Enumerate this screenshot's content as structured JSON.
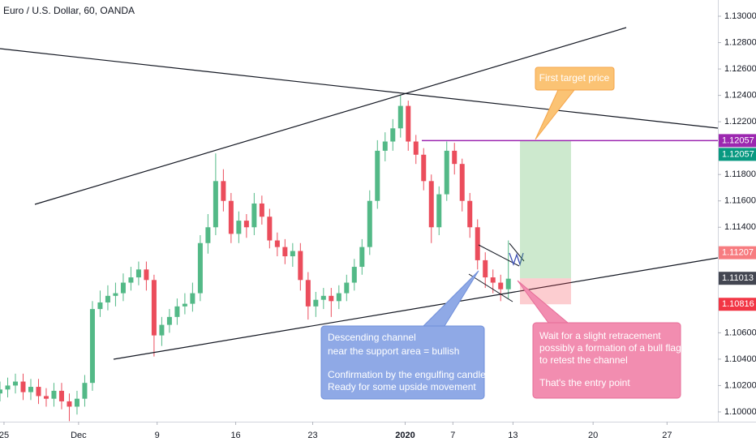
{
  "chart_data": {
    "type": "candlestick",
    "title": "Euro / U.S. Dollar, 60, OANDA",
    "x": [
      0,
      0.5,
      1,
      1.5,
      2,
      2.5,
      3,
      3.5,
      4,
      4.5,
      5,
      5.5,
      6,
      6.5,
      7,
      7.5,
      8,
      8.5,
      9,
      9.5,
      10,
      10.5,
      11,
      11.5,
      12,
      12.5,
      13,
      13.5,
      14,
      14.5,
      15,
      15.5,
      16,
      16.5,
      17,
      17.5,
      18,
      18.5,
      19,
      19.5,
      20,
      20.5,
      21,
      21.5,
      22,
      22.5,
      23,
      23.5,
      24,
      24.5,
      25,
      25.5,
      26,
      26.5,
      27,
      27.5,
      28,
      28.5,
      29,
      29.5,
      30,
      30.5,
      31,
      31.5,
      32,
      32.5,
      33
    ],
    "open": [
      1.1014,
      1.1017,
      1.102,
      1.1023,
      1.1015,
      1.1019,
      1.1012,
      1.101,
      1.1016,
      1.1008,
      1.1004,
      1.101,
      1.1022,
      1.1078,
      1.1083,
      1.1088,
      1.109,
      1.1098,
      1.1102,
      1.1108,
      1.11,
      1.1058,
      1.1066,
      1.1072,
      1.108,
      1.1082,
      1.109,
      1.1128,
      1.114,
      1.1175,
      1.116,
      1.1135,
      1.1145,
      1.114,
      1.1158,
      1.1148,
      1.113,
      1.1125,
      1.1118,
      1.1122,
      1.11,
      1.108,
      1.1085,
      1.1088,
      1.1084,
      1.109,
      1.1098,
      1.111,
      1.1125,
      1.116,
      1.1198,
      1.1205,
      1.1215,
      1.1232,
      1.1205,
      1.1195,
      1.1175,
      1.114,
      1.1165,
      1.1198,
      1.1188,
      1.116,
      1.114,
      1.1115,
      1.1102,
      1.1098,
      1.1093
    ],
    "high": [
      1.1023,
      1.1026,
      1.1029,
      1.1029,
      1.1025,
      1.1025,
      1.1018,
      1.1022,
      1.1022,
      1.1014,
      1.1016,
      1.1028,
      1.1084,
      1.1092,
      1.1096,
      1.1098,
      1.1105,
      1.111,
      1.1114,
      1.1114,
      1.1104,
      1.1072,
      1.1078,
      1.1086,
      1.109,
      1.1098,
      1.1134,
      1.115,
      1.1196,
      1.1184,
      1.1166,
      1.1152,
      1.115,
      1.1166,
      1.1164,
      1.1154,
      1.1136,
      1.1131,
      1.1128,
      1.1128,
      1.1106,
      1.1091,
      1.1094,
      1.1094,
      1.1096,
      1.1104,
      1.1116,
      1.1131,
      1.1168,
      1.1206,
      1.1212,
      1.1222,
      1.124,
      1.1236,
      1.121,
      1.12,
      1.118,
      1.1171,
      1.1205,
      1.1204,
      1.1192,
      1.1166,
      1.1146,
      1.1121,
      1.1108,
      1.1104,
      1.113
    ],
    "low": [
      1.1008,
      1.1011,
      1.1014,
      1.1009,
      1.1009,
      1.1006,
      1.1004,
      1.1004,
      1.1002,
      1.0993,
      1.0998,
      1.1004,
      1.1016,
      1.1072,
      1.1077,
      1.108,
      1.1084,
      1.1092,
      1.1096,
      1.1092,
      1.1042,
      1.105,
      1.106,
      1.1066,
      1.1074,
      1.1076,
      1.1084,
      1.112,
      1.1134,
      1.1152,
      1.1128,
      1.1128,
      1.1132,
      1.1134,
      1.1142,
      1.1124,
      1.1118,
      1.1112,
      1.111,
      1.1092,
      1.107,
      1.1072,
      1.1078,
      1.1072,
      1.1078,
      1.1084,
      1.1092,
      1.1104,
      1.1119,
      1.1154,
      1.119,
      1.1198,
      1.1208,
      1.1198,
      1.1188,
      1.1168,
      1.1128,
      1.1134,
      1.116,
      1.118,
      1.1152,
      1.1132,
      1.1108,
      1.1094,
      1.109,
      1.1084,
      1.1086
    ],
    "close": [
      1.1017,
      1.102,
      1.1023,
      1.1015,
      1.1019,
      1.1012,
      1.101,
      1.1016,
      1.1008,
      1.1004,
      1.101,
      1.1022,
      1.1078,
      1.1083,
      1.1088,
      1.109,
      1.1098,
      1.1102,
      1.1108,
      1.11,
      1.1058,
      1.1066,
      1.1072,
      1.108,
      1.1082,
      1.109,
      1.1128,
      1.114,
      1.1175,
      1.116,
      1.1135,
      1.1145,
      1.114,
      1.1158,
      1.1148,
      1.113,
      1.1125,
      1.1118,
      1.1122,
      1.11,
      1.108,
      1.1085,
      1.1088,
      1.1084,
      1.109,
      1.1098,
      1.111,
      1.1125,
      1.116,
      1.1198,
      1.1205,
      1.1215,
      1.1232,
      1.1205,
      1.1195,
      1.1175,
      1.114,
      1.1165,
      1.1198,
      1.1188,
      1.116,
      1.114,
      1.1115,
      1.1102,
      1.1098,
      1.1093,
      1.1101
    ],
    "up_color": "#53b987",
    "down_color": "#eb4d5c",
    "xlim": [
      0,
      46.6
    ],
    "xticks": [
      {
        "value": 0.26,
        "label": "25"
      },
      {
        "value": 5.1,
        "label": "Dec"
      },
      {
        "value": 10.2,
        "label": "9"
      },
      {
        "value": 15.3,
        "label": "16"
      },
      {
        "value": 20.3,
        "label": "23"
      },
      {
        "value": 26.3,
        "label": "2020"
      },
      {
        "value": 29.4,
        "label": "7"
      },
      {
        "value": 33.3,
        "label": "13"
      },
      {
        "value": 38.5,
        "label": "20"
      },
      {
        "value": 43.3,
        "label": "27"
      }
    ],
    "ylim": [
      1.09926,
      1.13123
    ],
    "yticks": [
      {
        "value": 1.13,
        "label": "1.13000"
      },
      {
        "value": 1.128,
        "label": "1.12800"
      },
      {
        "value": 1.126,
        "label": "1.12600"
      },
      {
        "value": 1.124,
        "label": "1.12400"
      },
      {
        "value": 1.122,
        "label": "1.12200"
      },
      {
        "value": 1.118,
        "label": "1.11800"
      },
      {
        "value": 1.116,
        "label": "1.11600"
      },
      {
        "value": 1.114,
        "label": "1.11400"
      },
      {
        "value": 1.106,
        "label": "1.10600"
      },
      {
        "value": 1.104,
        "label": "1.10400"
      },
      {
        "value": 1.102,
        "label": "1.10200"
      },
      {
        "value": 1.1,
        "label": "1.10000"
      }
    ],
    "grid": false,
    "levels": [
      {
        "value": 1.12057,
        "color": "#9c27b0"
      },
      {
        "value": 1.12057,
        "color": "#089981"
      },
      {
        "value": 1.11207,
        "color": "#f77c80"
      },
      {
        "value": 1.11013,
        "color": "#434651"
      },
      {
        "value": 1.10816,
        "color": "#f23645"
      }
    ],
    "annotations": {
      "target_note": "First target price",
      "channel_note": [
        "Descending channel",
        "near the support area = bullish",
        "Confirmation by the engulfing candle",
        "Ready for some upside movement"
      ],
      "entry_note": [
        "Wait for a slight retracement",
        "possibly a formation of a bull flag",
        "to retest the channel",
        "That's the entry point"
      ]
    }
  }
}
